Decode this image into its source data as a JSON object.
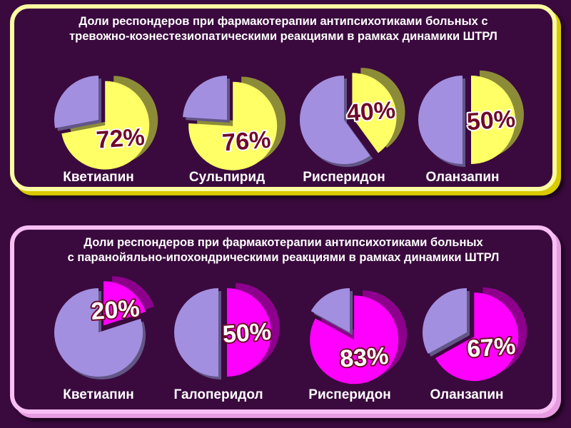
{
  "chart_data": [
    {
      "type": "pie",
      "title": "Доли респондеров при фармакотерапии антипсихотиками  больных с тревожно-коэнестезиопатическими  реакциями в рамках динамики ШТРЛ",
      "title_lines": [
        "Доли респондеров при фармакотерапии антипсихотиками  больных с",
        "тревожно-коэнестезиопатическими  реакциями в рамках динамики ШТРЛ"
      ],
      "categories": [
        "Кветиапин",
        "Сульпирид",
        "Рисперидон",
        "Оланзапин"
      ],
      "values": [
        72,
        76,
        40,
        50
      ],
      "value_labels": [
        "72%",
        "76%",
        "40%",
        "50%"
      ],
      "colors": {
        "responders": "#ffff66",
        "rest": "#a38fe0",
        "label_fill": "#6e0a2a",
        "label_stroke": "#ffffff"
      }
    },
    {
      "type": "pie",
      "title": "Доли респондеров при фармакотерапии антипсихотиками  больных с паранойяльно-ипохондрическими  реакциями в рамках динамики ШТРЛ",
      "title_lines": [
        "Доли респондеров при фармакотерапии антипсихотиками  больных",
        "с паранойяльно-ипохондрическими  реакциями в рамках динамики ШТРЛ"
      ],
      "categories": [
        "Кветиапин",
        "Галоперидол",
        "Рисперидон",
        "Оланзапин"
      ],
      "values": [
        20,
        50,
        83,
        67
      ],
      "value_labels": [
        "20%",
        "50%",
        "83%",
        "67%"
      ],
      "colors": {
        "responders": "#ff00ff",
        "rest": "#a38fe0",
        "label_fill": "#ffffff",
        "label_stroke": "#6e0a2a"
      }
    }
  ]
}
